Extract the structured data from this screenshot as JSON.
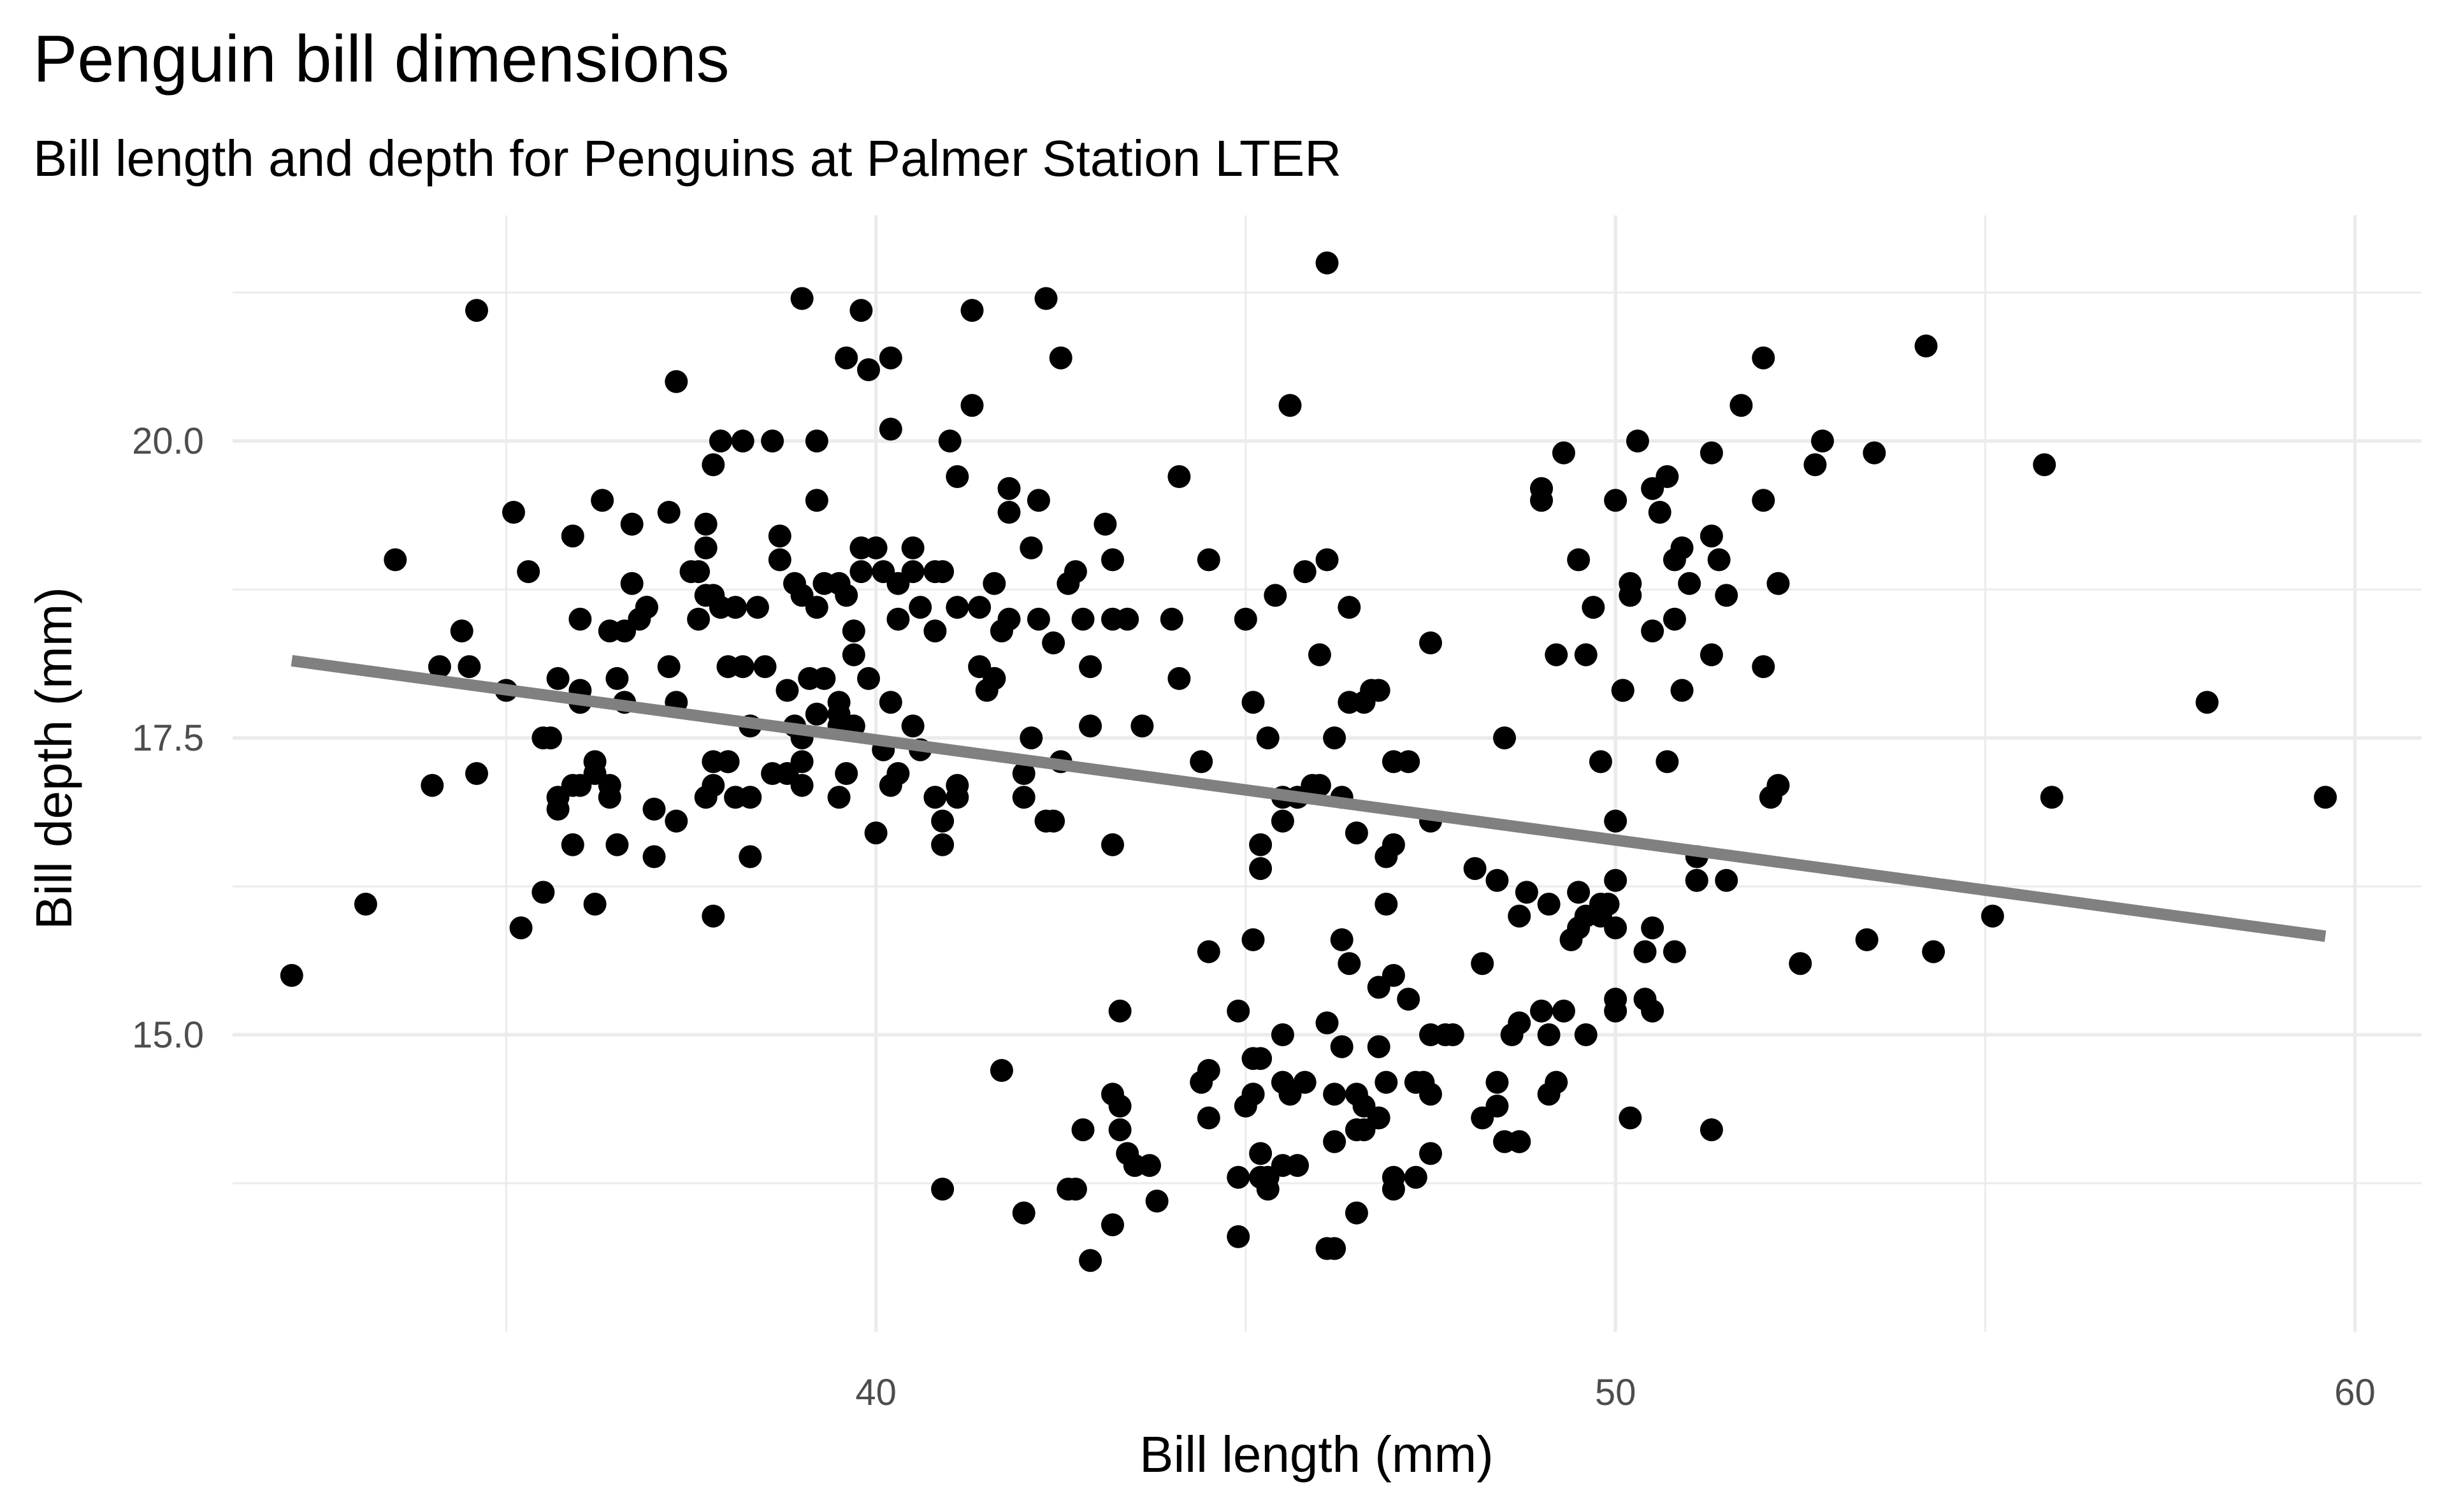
{
  "chart_data": {
    "type": "scatter",
    "title": "Penguin bill dimensions",
    "subtitle": "Bill length and depth for Penguins at Palmer Station LTER",
    "xlabel": "Bill length (mm)",
    "ylabel": "Bill depth (mm)",
    "xlim": [
      31.3,
      60.9
    ],
    "ylim": [
      12.5,
      21.9
    ],
    "x_ticks": [
      40,
      50,
      60
    ],
    "x_tick_labels": [
      "40",
      "50",
      "60"
    ],
    "x_minor_ticks": [
      35,
      45,
      55
    ],
    "y_ticks": [
      15.0,
      17.5,
      20.0
    ],
    "y_tick_labels": [
      "15.0",
      "17.5",
      "20.0"
    ],
    "y_minor_ticks": [
      13.75,
      16.25,
      18.75,
      21.25
    ],
    "grid": true,
    "legend": "none",
    "point_color": "#000000",
    "trend_color": "#808080",
    "trend_line": {
      "x": [
        32.1,
        59.6
      ],
      "y": [
        18.15,
        15.83
      ]
    },
    "points": [
      [
        32.1,
        15.5
      ],
      [
        33.1,
        16.1
      ],
      [
        33.5,
        19.0
      ],
      [
        34.0,
        17.1
      ],
      [
        34.1,
        18.1
      ],
      [
        34.4,
        18.4
      ],
      [
        34.5,
        18.1
      ],
      [
        34.6,
        21.1
      ],
      [
        34.6,
        17.2
      ],
      [
        35.0,
        17.9
      ],
      [
        35.1,
        19.4
      ],
      [
        35.2,
        15.9
      ],
      [
        35.3,
        18.9
      ],
      [
        35.5,
        16.2
      ],
      [
        35.5,
        17.5
      ],
      [
        35.6,
        17.5
      ],
      [
        35.7,
        17.0
      ],
      [
        35.7,
        16.9
      ],
      [
        35.7,
        18.0
      ],
      [
        35.9,
        17.1
      ],
      [
        35.9,
        16.6
      ],
      [
        35.9,
        19.2
      ],
      [
        36.0,
        17.1
      ],
      [
        36.0,
        17.9
      ],
      [
        36.0,
        18.5
      ],
      [
        36.0,
        17.8
      ],
      [
        36.2,
        16.1
      ],
      [
        36.2,
        17.3
      ],
      [
        36.2,
        17.2
      ],
      [
        36.3,
        19.5
      ],
      [
        36.4,
        17.1
      ],
      [
        36.4,
        17.0
      ],
      [
        36.5,
        16.6
      ],
      [
        36.5,
        18.0
      ],
      [
        36.6,
        17.8
      ],
      [
        36.6,
        18.4
      ],
      [
        36.7,
        19.3
      ],
      [
        36.7,
        18.8
      ],
      [
        36.8,
        18.5
      ],
      [
        36.9,
        18.6
      ],
      [
        37.0,
        16.9
      ],
      [
        37.0,
        16.5
      ],
      [
        37.2,
        19.4
      ],
      [
        37.2,
        18.1
      ],
      [
        37.3,
        16.8
      ],
      [
        37.3,
        20.5
      ],
      [
        37.3,
        17.8
      ],
      [
        37.6,
        18.9
      ],
      [
        37.6,
        18.5
      ],
      [
        37.7,
        17.0
      ],
      [
        37.7,
        19.3
      ],
      [
        37.7,
        19.1
      ],
      [
        37.7,
        18.7
      ],
      [
        37.8,
        16.0
      ],
      [
        37.8,
        18.7
      ],
      [
        37.8,
        19.8
      ],
      [
        37.8,
        17.1
      ],
      [
        37.9,
        20.0
      ],
      [
        37.9,
        18.6
      ],
      [
        38.0,
        17.3
      ],
      [
        38.0,
        18.1
      ],
      [
        38.0,
        17.3
      ],
      [
        38.1,
        18.6
      ],
      [
        38.2,
        18.1
      ],
      [
        38.2,
        20.0
      ],
      [
        38.3,
        17.6
      ],
      [
        38.3,
        17.0
      ],
      [
        38.3,
        16.5
      ],
      [
        38.4,
        18.6
      ],
      [
        38.5,
        18.1
      ],
      [
        38.6,
        20.0
      ],
      [
        38.7,
        19.2
      ],
      [
        38.8,
        17.9
      ],
      [
        39.0,
        17.5
      ],
      [
        39.0,
        17.3
      ],
      [
        39.0,
        17.1
      ],
      [
        39.0,
        21.2
      ],
      [
        39.1,
        18.0
      ],
      [
        39.2,
        20.0
      ],
      [
        39.2,
        17.7
      ],
      [
        39.2,
        19.5
      ],
      [
        39.3,
        18.8
      ],
      [
        39.3,
        18.0
      ],
      [
        39.5,
        17.6
      ],
      [
        39.5,
        17.7
      ],
      [
        39.5,
        18.8
      ],
      [
        39.5,
        17.8
      ],
      [
        39.5,
        17.0
      ],
      [
        39.6,
        18.7
      ],
      [
        39.6,
        17.2
      ],
      [
        39.7,
        18.2
      ],
      [
        39.7,
        17.6
      ],
      [
        39.8,
        19.1
      ],
      [
        39.8,
        18.9
      ],
      [
        39.8,
        21.1
      ],
      [
        39.9,
        18.0
      ],
      [
        39.9,
        20.6
      ],
      [
        40.0,
        16.7
      ],
      [
        40.1,
        17.4
      ],
      [
        40.2,
        17.8
      ],
      [
        40.2,
        20.7
      ],
      [
        40.2,
        17.1
      ],
      [
        40.3,
        18.8
      ],
      [
        40.3,
        17.2
      ],
      [
        40.3,
        18.5
      ],
      [
        40.5,
        17.6
      ],
      [
        40.5,
        18.9
      ],
      [
        40.5,
        19.1
      ],
      [
        40.6,
        17.4
      ],
      [
        40.9,
        18.9
      ],
      [
        41.1,
        17.1
      ],
      [
        41.1,
        18.6
      ],
      [
        41.1,
        19.7
      ],
      [
        41.1,
        17.0
      ],
      [
        41.4,
        18.6
      ],
      [
        41.4,
        18.1
      ],
      [
        41.6,
        18.8
      ],
      [
        41.6,
        18.0
      ],
      [
        41.7,
        18.4
      ],
      [
        41.5,
        17.9
      ],
      [
        41.8,
        19.6
      ],
      [
        41.8,
        18.5
      ],
      [
        42.0,
        17.0
      ],
      [
        42.0,
        17.2
      ],
      [
        42.1,
        17.5
      ],
      [
        42.2,
        18.5
      ],
      [
        42.2,
        19.5
      ],
      [
        42.3,
        16.8
      ],
      [
        42.4,
        16.8
      ],
      [
        42.5,
        20.7
      ],
      [
        42.6,
        18.8
      ],
      [
        42.7,
        18.9
      ],
      [
        42.8,
        18.5
      ],
      [
        42.9,
        17.6
      ],
      [
        42.9,
        18.1
      ],
      [
        43.1,
        19.3
      ],
      [
        43.2,
        18.5
      ],
      [
        43.2,
        19.0
      ],
      [
        43.4,
        18.5
      ],
      [
        43.6,
        17.6
      ],
      [
        44.0,
        18.5
      ],
      [
        44.1,
        19.7
      ],
      [
        44.1,
        18.0
      ],
      [
        44.5,
        19.0
      ],
      [
        45.0,
        18.5
      ],
      [
        45.3,
        17.5
      ],
      [
        45.6,
        20.3
      ],
      [
        45.8,
        18.9
      ],
      [
        45.9,
        17.1
      ],
      [
        46.0,
        18.2
      ],
      [
        46.1,
        19.0
      ],
      [
        46.1,
        21.5
      ],
      [
        46.2,
        17.5
      ],
      [
        46.4,
        18.6
      ],
      [
        46.6,
        17.8
      ],
      [
        46.7,
        17.9
      ],
      [
        46.8,
        17.9
      ],
      [
        47.0,
        17.3
      ],
      [
        47.5,
        18.3
      ],
      [
        49.0,
        19.5
      ],
      [
        49.0,
        19.6
      ],
      [
        49.2,
        18.2
      ],
      [
        49.3,
        19.9
      ],
      [
        49.5,
        19.0
      ],
      [
        49.6,
        18.2
      ],
      [
        49.7,
        18.6
      ],
      [
        50.0,
        19.5
      ],
      [
        50.1,
        17.9
      ],
      [
        50.2,
        18.8
      ],
      [
        50.2,
        18.7
      ],
      [
        50.3,
        20.0
      ],
      [
        50.5,
        18.4
      ],
      [
        50.5,
        19.6
      ],
      [
        50.6,
        19.4
      ],
      [
        50.7,
        19.7
      ],
      [
        50.8,
        19.0
      ],
      [
        50.8,
        18.5
      ],
      [
        50.9,
        17.9
      ],
      [
        50.9,
        19.1
      ],
      [
        51.0,
        18.8
      ],
      [
        51.3,
        19.9
      ],
      [
        51.3,
        19.2
      ],
      [
        51.3,
        18.2
      ],
      [
        51.4,
        19.0
      ],
      [
        51.5,
        18.7
      ],
      [
        51.7,
        20.3
      ],
      [
        52.0,
        19.5
      ],
      [
        52.0,
        18.1
      ],
      [
        52.0,
        20.7
      ],
      [
        52.2,
        18.8
      ],
      [
        52.7,
        19.8
      ],
      [
        52.8,
        20.0
      ],
      [
        53.5,
        19.9
      ],
      [
        54.2,
        20.8
      ],
      [
        55.8,
        19.8
      ],
      [
        58.0,
        17.8
      ],
      [
        59.6,
        17.0
      ],
      [
        40.6,
        18.6
      ],
      [
        40.8,
        18.9
      ],
      [
        41.0,
        20.0
      ],
      [
        41.3,
        20.3
      ],
      [
        41.3,
        21.1
      ],
      [
        41.6,
        18.0
      ],
      [
        41.8,
        19.4
      ],
      [
        42.1,
        19.1
      ],
      [
        42.3,
        21.2
      ],
      [
        42.5,
        17.3
      ],
      [
        40.0,
        19.1
      ],
      [
        40.1,
        18.9
      ],
      [
        40.9,
        16.6
      ],
      [
        40.9,
        16.8
      ],
      [
        40.2,
        20.1
      ],
      [
        40.8,
        18.4
      ],
      [
        39.7,
        18.4
      ],
      [
        39.6,
        20.7
      ],
      [
        38.9,
        18.8
      ],
      [
        38.6,
        17.2
      ],
      [
        38.1,
        17.0
      ],
      [
        37.8,
        17.3
      ],
      [
        36.9,
        18.6
      ],
      [
        36.4,
        18.4
      ],
      [
        38.8,
        17.2
      ],
      [
        38.9,
        17.6
      ],
      [
        39.2,
        18.6
      ],
      [
        39.0,
        18.7
      ],
      [
        38.7,
        19.0
      ],
      [
        36.0,
        17.8
      ],
      [
        37.5,
        18.9
      ],
      [
        40.8,
        17.0
      ],
      [
        42.4,
        18.3
      ],
      [
        43.2,
        16.6
      ],
      [
        44.4,
        17.3
      ],
      [
        45.1,
        17.8
      ],
      [
        45.5,
        17.0
      ],
      [
        45.2,
        16.6
      ],
      [
        45.2,
        16.4
      ],
      [
        45.4,
        18.7
      ],
      [
        45.7,
        17.0
      ],
      [
        46.0,
        17.1
      ],
      [
        46.4,
        17.8
      ],
      [
        47.0,
        16.6
      ],
      [
        47.5,
        16.8
      ],
      [
        48.1,
        16.4
      ],
      [
        48.4,
        16.3
      ],
      [
        48.7,
        16.0
      ],
      [
        48.5,
        17.5
      ],
      [
        48.8,
        16.2
      ],
      [
        49.1,
        16.1
      ],
      [
        49.5,
        16.2
      ],
      [
        49.6,
        16.0
      ],
      [
        49.8,
        16.1
      ],
      [
        50.0,
        16.3
      ],
      [
        50.0,
        15.9
      ],
      [
        49.9,
        16.1
      ],
      [
        51.1,
        16.5
      ],
      [
        51.1,
        16.3
      ],
      [
        51.5,
        16.3
      ],
      [
        52.1,
        17.0
      ],
      [
        52.2,
        17.1
      ],
      [
        50.0,
        16.8
      ],
      [
        49.8,
        17.3
      ],
      [
        50.1,
        17.9
      ],
      [
        50.7,
        17.3
      ],
      [
        51.1,
        16.3
      ],
      [
        46.3,
        17.0
      ],
      [
        46.9,
        16.5
      ],
      [
        45.5,
        16.8
      ],
      [
        46.5,
        16.7
      ],
      [
        47.2,
        17.3
      ],
      [
        46.9,
        16.1
      ],
      [
        44.9,
        15.2
      ],
      [
        43.3,
        15.2
      ],
      [
        44.5,
        14.7
      ],
      [
        45.1,
        14.5
      ],
      [
        45.2,
        14.8
      ],
      [
        45.5,
        15.0
      ],
      [
        45.6,
        14.5
      ],
      [
        45.8,
        14.6
      ],
      [
        46.1,
        15.1
      ],
      [
        46.2,
        14.5
      ],
      [
        46.3,
        14.9
      ],
      [
        46.5,
        14.5
      ],
      [
        46.5,
        14.2
      ],
      [
        46.6,
        14.4
      ],
      [
        46.8,
        15.4
      ],
      [
        46.8,
        14.9
      ],
      [
        47.0,
        15.5
      ],
      [
        47.2,
        15.3
      ],
      [
        47.3,
        14.6
      ],
      [
        47.5,
        15.0
      ],
      [
        47.5,
        14.5
      ],
      [
        47.7,
        15.0
      ],
      [
        47.8,
        15.0
      ],
      [
        48.2,
        15.6
      ],
      [
        48.4,
        14.4
      ],
      [
        48.5,
        14.1
      ],
      [
        48.6,
        15.0
      ],
      [
        48.7,
        15.1
      ],
      [
        49.1,
        14.5
      ],
      [
        49.1,
        15.0
      ],
      [
        49.3,
        15.2
      ],
      [
        49.4,
        15.8
      ],
      [
        49.5,
        15.9
      ],
      [
        49.6,
        15.0
      ],
      [
        49.8,
        16.0
      ],
      [
        50.0,
        15.2
      ],
      [
        50.0,
        15.3
      ],
      [
        50.2,
        14.3
      ],
      [
        50.4,
        15.3
      ],
      [
        50.4,
        15.7
      ],
      [
        50.5,
        15.9
      ],
      [
        50.5,
        15.2
      ],
      [
        50.8,
        15.7
      ],
      [
        51.3,
        14.2
      ],
      [
        52.5,
        15.6
      ],
      [
        53.4,
        15.8
      ],
      [
        54.3,
        15.7
      ],
      [
        55.1,
        16.0
      ],
      [
        55.9,
        17.0
      ],
      [
        45.1,
        15.8
      ],
      [
        45.3,
        13.7
      ],
      [
        45.5,
        13.9
      ],
      [
        45.7,
        13.9
      ],
      [
        46.2,
        14.1
      ],
      [
        46.4,
        15.6
      ],
      [
        46.3,
        15.8
      ],
      [
        46.2,
        13.2
      ],
      [
        46.5,
        13.5
      ],
      [
        46.8,
        14.3
      ],
      [
        46.6,
        14.2
      ],
      [
        47.0,
        13.8
      ],
      [
        47.3,
        13.8
      ],
      [
        47.4,
        14.6
      ],
      [
        47.5,
        14.0
      ],
      [
        48.4,
        14.6
      ],
      [
        48.7,
        14.1
      ],
      [
        48.2,
        14.3
      ],
      [
        49.0,
        15.2
      ],
      [
        49.2,
        14.6
      ],
      [
        47.0,
        13.7
      ],
      [
        46.9,
        14.6
      ],
      [
        45.0,
        14.4
      ],
      [
        45.2,
        14.0
      ],
      [
        45.3,
        13.8
      ],
      [
        44.9,
        13.8
      ],
      [
        45.1,
        14.8
      ],
      [
        45.5,
        14.6
      ],
      [
        44.5,
        15.7
      ],
      [
        44.5,
        14.3
      ],
      [
        44.4,
        14.6
      ],
      [
        43.8,
        13.6
      ],
      [
        43.5,
        13.9
      ],
      [
        43.3,
        14.4
      ],
      [
        43.2,
        14.5
      ],
      [
        43.3,
        14.2
      ],
      [
        43.4,
        14.0
      ],
      [
        43.2,
        13.4
      ],
      [
        42.9,
        13.1
      ],
      [
        42.8,
        14.2
      ],
      [
        42.6,
        13.7
      ],
      [
        42.7,
        13.7
      ],
      [
        42.0,
        13.5
      ],
      [
        41.7,
        14.7
      ],
      [
        40.9,
        13.7
      ],
      [
        43.7,
        13.9
      ],
      [
        44.9,
        13.3
      ],
      [
        45.1,
        14.5
      ],
      [
        45.2,
        13.8
      ],
      [
        46.1,
        13.2
      ],
      [
        48.7,
        14.1
      ]
    ]
  }
}
